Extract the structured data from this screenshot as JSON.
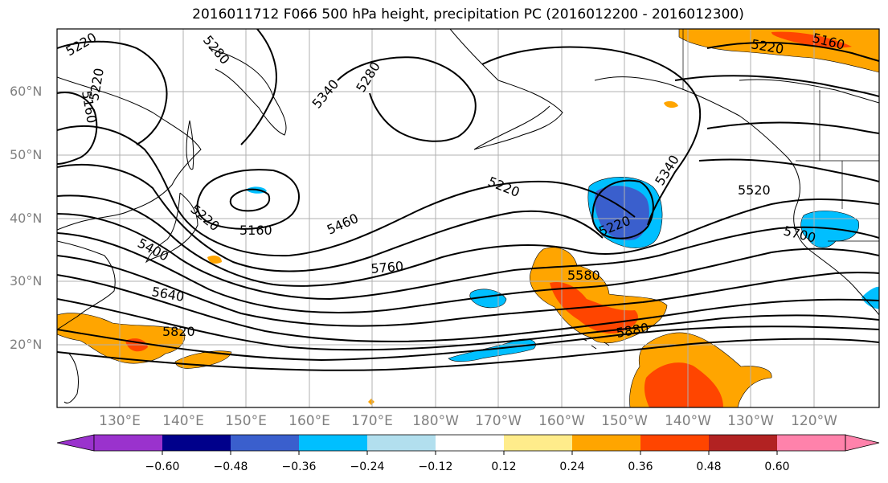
{
  "title": "2016011712 F066 500 hPa height, precipitation PC (2016012200 - 2016012300)",
  "map": {
    "lat_labels": [
      "60°N",
      "50°N",
      "40°N",
      "30°N",
      "20°N"
    ],
    "lon_labels": [
      "130°E",
      "140°E",
      "150°E",
      "160°E",
      "170°E",
      "180°W",
      "170°W",
      "160°W",
      "150°W",
      "140°W",
      "130°W",
      "120°W"
    ],
    "contour_labels": [
      "5220",
      "5280",
      "5220",
      "5160",
      "5340",
      "5280",
      "5220",
      "5160",
      "5400",
      "5460",
      "5220",
      "5520",
      "5340",
      "5160",
      "5220",
      "5580",
      "5700",
      "5760",
      "5640",
      "5820",
      "5880",
      "5220"
    ]
  },
  "colorbar": {
    "tick_labels": [
      "−0.60",
      "−0.48",
      "−0.36",
      "−0.24",
      "−0.12",
      "0.12",
      "0.24",
      "0.36",
      "0.48",
      "0.60"
    ],
    "colors": [
      "#9a32cd",
      "#00008b",
      "#3a5fcd",
      "#00bfff",
      "#b2dfee",
      "#ffffff",
      "#ffec8b",
      "#ffa500",
      "#ff4500",
      "#b22222",
      "#ff82ab"
    ]
  }
}
